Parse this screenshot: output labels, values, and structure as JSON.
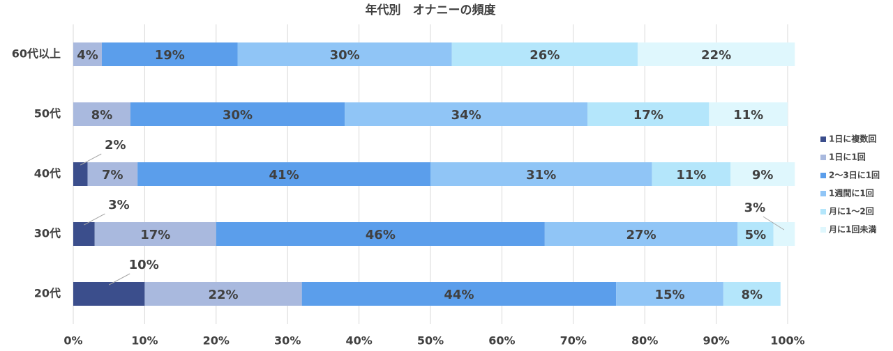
{
  "chart_data": {
    "type": "stacked-barh",
    "title": "年代別　オナニーの頻度",
    "categories": [
      "60代以上",
      "50代",
      "40代",
      "30代",
      "20代"
    ],
    "series": [
      {
        "name": "1日に複数回",
        "color": "#3b4e8c",
        "values": [
          0,
          0,
          2,
          3,
          10
        ],
        "value_labels": [
          null,
          null,
          "2%",
          "3%",
          "10%"
        ]
      },
      {
        "name": "1日に1回",
        "color": "#a9b9de",
        "values": [
          4,
          8,
          7,
          17,
          22
        ],
        "value_labels": [
          "4%",
          "8%",
          "7%",
          "17%",
          "22%"
        ]
      },
      {
        "name": "2〜3日に1回",
        "color": "#5b9eeb",
        "values": [
          19,
          30,
          41,
          46,
          44
        ],
        "value_labels": [
          "19%",
          "30%",
          "41%",
          "46%",
          "44%"
        ]
      },
      {
        "name": "1週間に1回",
        "color": "#90c5f6",
        "values": [
          30,
          34,
          31,
          27,
          15
        ],
        "value_labels": [
          "30%",
          "34%",
          "31%",
          "27%",
          "15%"
        ]
      },
      {
        "name": "月に1〜2回",
        "color": "#b4e6fb",
        "values": [
          26,
          17,
          11,
          5,
          8
        ],
        "value_labels": [
          "26%",
          "17%",
          "11%",
          "5%",
          "8%"
        ]
      },
      {
        "name": "月に1回未満",
        "color": "#dff7fd",
        "values": [
          22,
          11,
          9,
          3,
          0
        ],
        "value_labels": [
          "22%",
          "11%",
          "9%",
          "3%",
          null
        ]
      }
    ],
    "xlim": [
      0,
      100
    ],
    "xticks": [
      {
        "value": 0,
        "label": "0%"
      },
      {
        "value": 10,
        "label": "10%"
      },
      {
        "value": 20,
        "label": "20%"
      },
      {
        "value": 30,
        "label": "30%"
      },
      {
        "value": 40,
        "label": "40%"
      },
      {
        "value": 50,
        "label": "50%"
      },
      {
        "value": 60,
        "label": "60%"
      },
      {
        "value": 70,
        "label": "70%"
      },
      {
        "value": 80,
        "label": "80%"
      },
      {
        "value": 90,
        "label": "90%"
      },
      {
        "value": 100,
        "label": "100%"
      }
    ],
    "grid": true,
    "legend": "right"
  }
}
